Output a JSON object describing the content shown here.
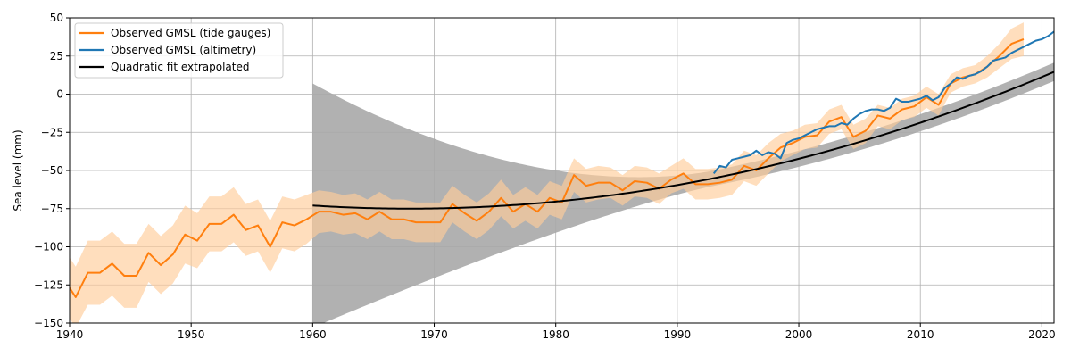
{
  "chart_data": {
    "type": "line",
    "xlabel": "",
    "ylabel": "Sea level (mm)",
    "xlim": [
      1940,
      2021
    ],
    "ylim": [
      -150,
      50
    ],
    "xticks": [
      1940,
      1950,
      1960,
      1970,
      1980,
      1990,
      2000,
      2010,
      2020
    ],
    "yticks": [
      -150,
      -125,
      -100,
      -75,
      -50,
      -25,
      0,
      25,
      50
    ],
    "grid": true,
    "legend_position": "top-left",
    "colors": {
      "tide": "#ff7f0e",
      "tide_band": "#ffcc99",
      "altimetry": "#1f77b4",
      "fit": "#000000",
      "fit_band": "#a9a9a9"
    },
    "series": [
      {
        "name": "Observed GMSL (tide gauges)",
        "x": [
          1940,
          1940.5,
          1941.5,
          1942.5,
          1943.5,
          1944.5,
          1945.5,
          1946.5,
          1947.5,
          1948.5,
          1949.5,
          1950.5,
          1951.5,
          1952.5,
          1953.5,
          1954.5,
          1955.5,
          1956.5,
          1957.5,
          1958.5,
          1959.5,
          1960.5,
          1961.5,
          1962.5,
          1963.5,
          1964.5,
          1965.5,
          1966.5,
          1967.5,
          1968.5,
          1969.5,
          1970.5,
          1971.5,
          1972.5,
          1973.5,
          1974.5,
          1975.5,
          1976.5,
          1977.5,
          1978.5,
          1979.5,
          1980.5,
          1981.5,
          1982.5,
          1983.5,
          1984.5,
          1985.5,
          1986.5,
          1987.5,
          1988.5,
          1989.5,
          1990.5,
          1991.5,
          1992.5,
          1993.5,
          1994.5,
          1995.5,
          1996.5,
          1997.5,
          1998.5,
          1999.5,
          2000.5,
          2001.5,
          2002.5,
          2003.5,
          2004.5,
          2005.5,
          2006.5,
          2007.5,
          2008.5,
          2009.5,
          2010.5,
          2011.5,
          2012.5,
          2013.5,
          2014.5,
          2015.5,
          2016.5,
          2017.5,
          2018.5
        ],
        "y": [
          -127,
          -133,
          -117,
          -117,
          -111,
          -119,
          -119,
          -104,
          -112,
          -105,
          -92,
          -96,
          -85,
          -85,
          -79,
          -89,
          -86,
          -100,
          -84,
          -86,
          -82,
          -77,
          -77,
          -79,
          -78,
          -82,
          -77,
          -82,
          -82,
          -84,
          -84,
          -84,
          -72,
          -78,
          -83,
          -77,
          -68,
          -77,
          -72,
          -77,
          -68,
          -71,
          -53,
          -60,
          -58,
          -58,
          -63,
          -57,
          -58,
          -62,
          -56,
          -52,
          -59,
          -59,
          -58,
          -56,
          -47,
          -50,
          -42,
          -35,
          -32,
          -28,
          -27,
          -18,
          -15,
          -28,
          -24,
          -14,
          -16,
          -10,
          -8,
          -2,
          -7,
          7,
          11,
          13,
          18,
          25,
          33,
          36
        ],
        "band_halfwidth": [
          20,
          20,
          21,
          21,
          21,
          21,
          21,
          19,
          19,
          19,
          19,
          18,
          18,
          18,
          18,
          17,
          17,
          17,
          17,
          17,
          16,
          14,
          13,
          13,
          13,
          13,
          13,
          13,
          13,
          13,
          13,
          13,
          12,
          12,
          12,
          12,
          12,
          11,
          11,
          11,
          11,
          11,
          11,
          11,
          11,
          10,
          10,
          10,
          10,
          10,
          9,
          10,
          10,
          10,
          10,
          10,
          10,
          10,
          10,
          9,
          8,
          8,
          8,
          8,
          8,
          8,
          8,
          7,
          7,
          7,
          7,
          7,
          7,
          6,
          6,
          6,
          7,
          8,
          10,
          11
        ]
      },
      {
        "name": "Observed GMSL (altimetry)",
        "x": [
          1993,
          1993.5,
          1994,
          1994.5,
          1995,
          1995.5,
          1996,
          1996.5,
          1997,
          1997.5,
          1998,
          1998.5,
          1999,
          1999.5,
          2000,
          2000.5,
          2001,
          2001.5,
          2002,
          2002.5,
          2003,
          2003.5,
          2004,
          2004.5,
          2005,
          2005.5,
          2006,
          2006.5,
          2007,
          2007.5,
          2008,
          2008.5,
          2009,
          2009.5,
          2010,
          2010.5,
          2011,
          2011.5,
          2012,
          2012.5,
          2013,
          2013.5,
          2014,
          2014.5,
          2015,
          2015.5,
          2016,
          2016.5,
          2017,
          2017.5,
          2018,
          2018.5,
          2019,
          2019.5,
          2020,
          2020.5,
          2021
        ],
        "y": [
          -52,
          -47,
          -48,
          -43,
          -42,
          -41,
          -40,
          -37,
          -40,
          -38,
          -39,
          -42,
          -32,
          -30,
          -29,
          -27,
          -25,
          -23,
          -22,
          -21,
          -21,
          -19,
          -20,
          -16,
          -13,
          -11,
          -10,
          -10,
          -11,
          -9,
          -3,
          -5,
          -5,
          -4,
          -3,
          -1,
          -4,
          -2,
          4,
          7,
          11,
          10,
          12,
          13,
          15,
          18,
          22,
          23,
          24,
          27,
          29,
          31,
          33,
          35,
          36,
          38,
          41
        ]
      },
      {
        "name": "Quadratic fit extrapolated",
        "fit": {
          "x_min": 1960,
          "x_max": 2021,
          "x_vertex": 1968,
          "y_vertex": -75,
          "curvature": 0.0319
        },
        "band": {
          "x_min": 1960,
          "x_max": 2021,
          "anchor_x": 1993,
          "anchor_halfwidth": 5,
          "end_halfwidth": 6,
          "start_halfwidth": 80,
          "growth_exponent": 1.7
        }
      }
    ]
  }
}
